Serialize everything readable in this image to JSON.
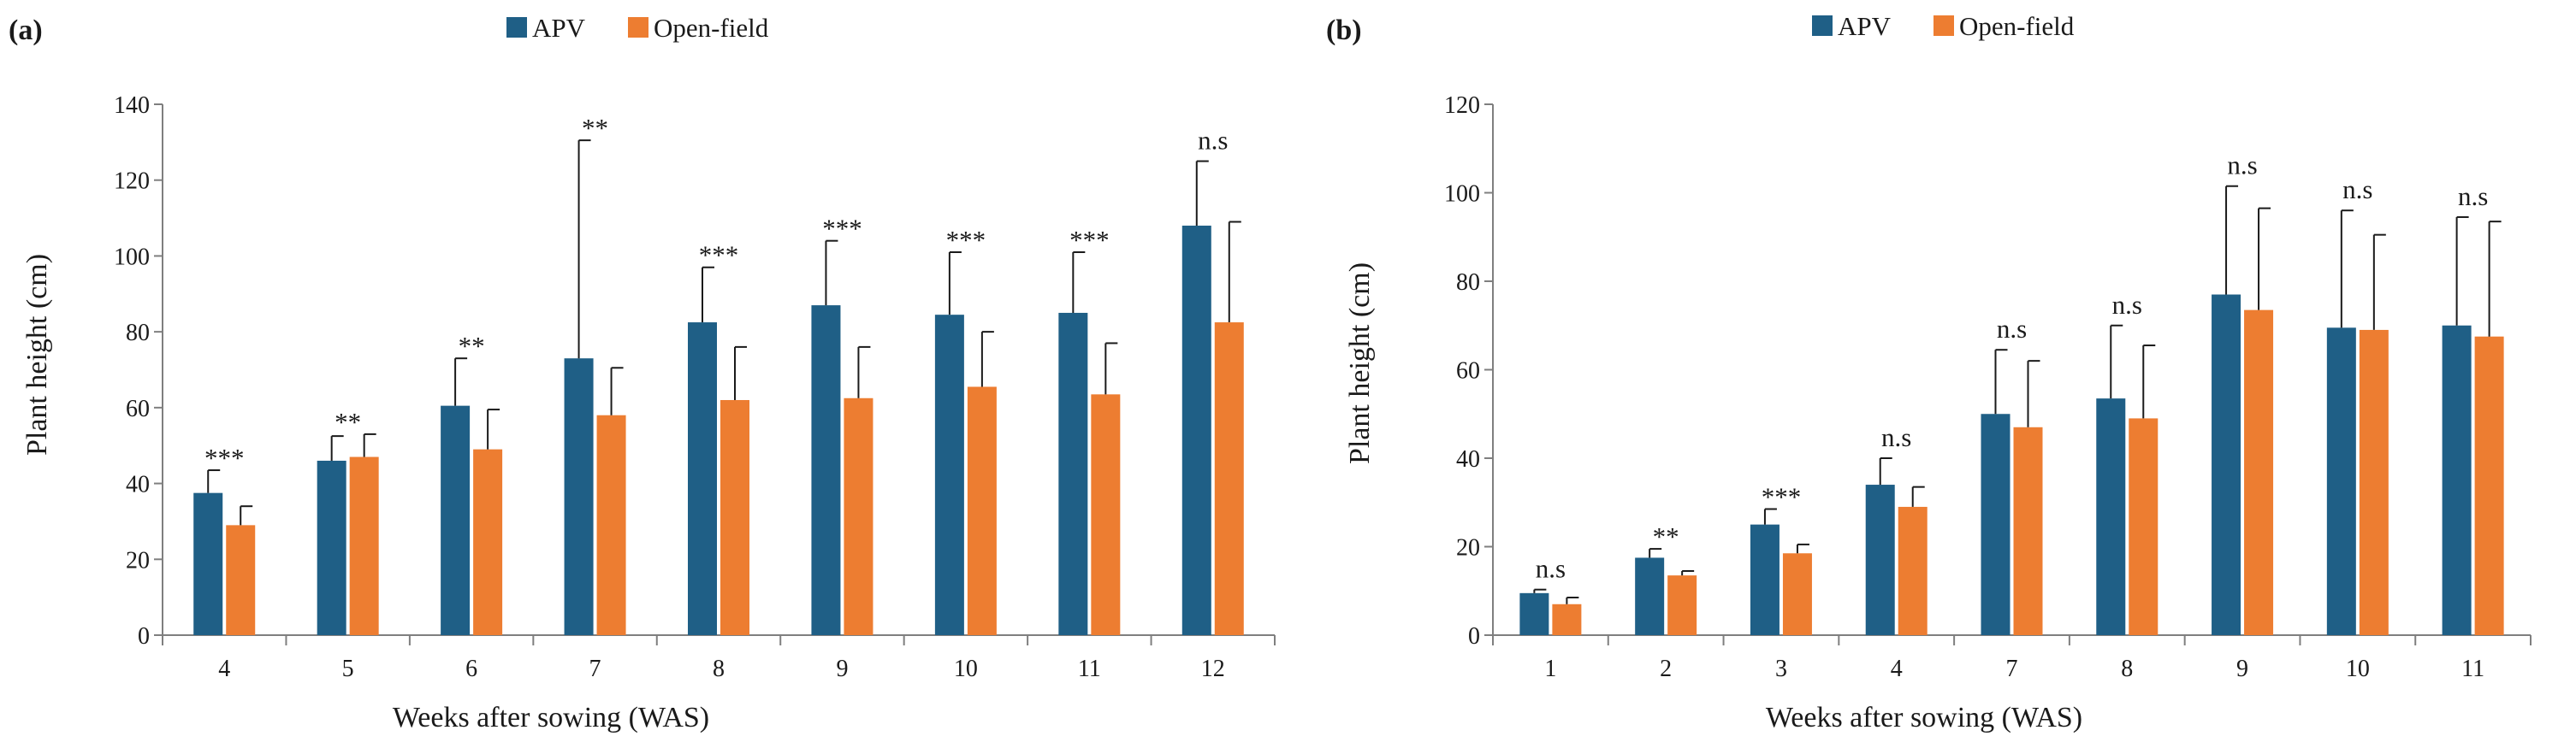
{
  "chart_data": [
    {
      "type": "bar",
      "panel_label": "(a)",
      "categories": [
        "4",
        "5",
        "6",
        "7",
        "8",
        "9",
        "10",
        "11",
        "12"
      ],
      "series": [
        {
          "name": "APV",
          "color": "#1f5f86",
          "values": [
            37.5,
            46,
            60.5,
            73,
            82.5,
            87,
            84.5,
            85,
            108
          ],
          "errors": [
            6,
            6.5,
            12.5,
            57.5,
            14.5,
            17,
            16.5,
            16,
            17
          ]
        },
        {
          "name": "Open-field",
          "color": "#ed7d31",
          "values": [
            29,
            47,
            49,
            58,
            62,
            62.5,
            65.5,
            63.5,
            82.5
          ],
          "errors": [
            5,
            6,
            10.5,
            12.5,
            14,
            13.5,
            14.5,
            13.5,
            26.5
          ]
        }
      ],
      "significance": [
        "***",
        "**",
        "**",
        "**",
        "***",
        "***",
        "***",
        "***",
        "n.s"
      ],
      "xlabel": "Weeks after sowing (WAS)",
      "ylabel": "Plant height (cm)",
      "ylim": [
        0,
        140
      ],
      "yticks": [
        "0",
        "20",
        "40",
        "60",
        "80",
        "100",
        "120",
        "140"
      ],
      "legend": {
        "placement": "top-center",
        "entries": [
          "APV",
          "Open-field"
        ]
      }
    },
    {
      "type": "bar",
      "panel_label": "(b)",
      "categories": [
        "1",
        "2",
        "3",
        "4",
        "7",
        "8",
        "9",
        "10",
        "11"
      ],
      "series": [
        {
          "name": "APV",
          "color": "#1f5f86",
          "values": [
            9.5,
            17.5,
            25,
            34,
            50,
            53.5,
            77,
            69.5,
            70
          ],
          "errors": [
            0.8,
            2,
            3.5,
            6,
            14.5,
            16.5,
            24.5,
            26.5,
            24.5
          ]
        },
        {
          "name": "Open-field",
          "color": "#ed7d31",
          "values": [
            7,
            13.5,
            18.5,
            29,
            47,
            49,
            73.5,
            69,
            67.5
          ],
          "errors": [
            1.5,
            1,
            2,
            4.5,
            15,
            16.5,
            23,
            21.5,
            26
          ]
        }
      ],
      "significance": [
        "n.s",
        "**",
        "***",
        "n.s",
        "n.s",
        "n.s",
        "n.s",
        "n.s",
        "n.s"
      ],
      "xlabel": "Weeks after sowing (WAS)",
      "ylabel": "Plant height (cm)",
      "ylim": [
        0,
        120
      ],
      "yticks": [
        "0",
        "20",
        "40",
        "60",
        "80",
        "100",
        "120"
      ],
      "legend": {
        "placement": "top-center",
        "entries": [
          "APV",
          "Open-field"
        ]
      }
    }
  ]
}
